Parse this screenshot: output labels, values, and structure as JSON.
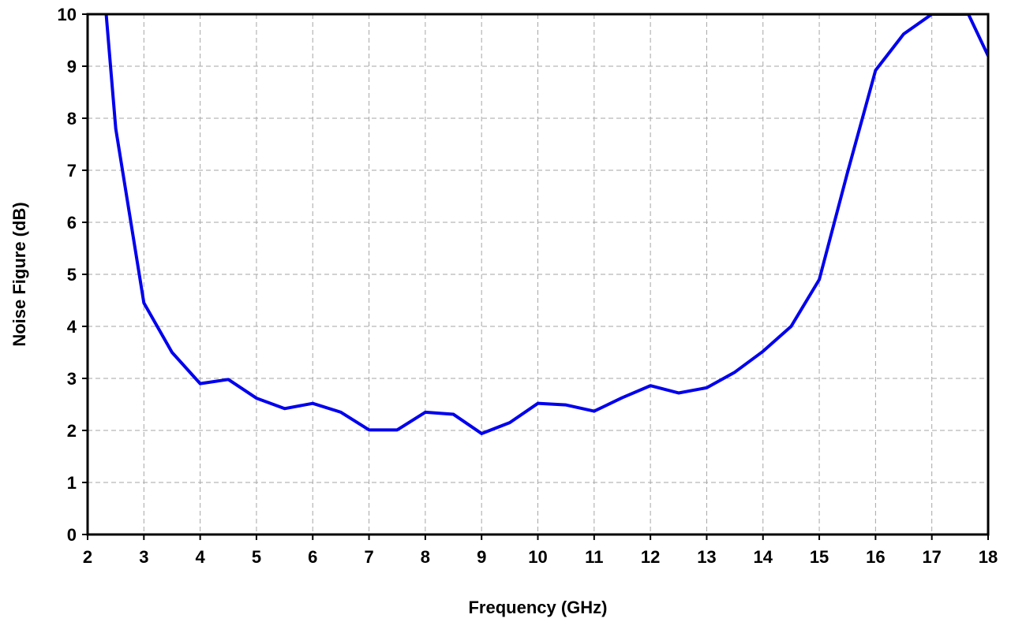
{
  "chart_data": {
    "type": "line",
    "xlabel": "Frequency (GHz)",
    "ylabel": "Noise Figure (dB)",
    "xlim": [
      2,
      18
    ],
    "ylim": [
      0,
      10
    ],
    "xticks": [
      2,
      3,
      4,
      5,
      6,
      7,
      8,
      9,
      10,
      11,
      12,
      13,
      14,
      15,
      16,
      17,
      18
    ],
    "yticks": [
      0,
      1,
      2,
      3,
      4,
      5,
      6,
      7,
      8,
      9,
      10
    ],
    "grid": true,
    "legend": "none",
    "color": "#0000ee",
    "series": [
      {
        "x": [
          2.33,
          2.5,
          3.0,
          3.5,
          4.0,
          4.5,
          5.0,
          5.5,
          6.0,
          6.5,
          7.0,
          7.5,
          8.0,
          8.5,
          9.0,
          9.5,
          10.0,
          10.5,
          11.0,
          11.5,
          12.0,
          12.5,
          13.0,
          13.5,
          14.0,
          14.5,
          15.0,
          15.5,
          16.0,
          16.5,
          17.0,
          17.3,
          17.65,
          18.0
        ],
        "y": [
          10.0,
          7.8,
          4.45,
          3.5,
          2.9,
          2.98,
          2.62,
          2.42,
          2.52,
          2.35,
          2.01,
          2.01,
          2.35,
          2.31,
          1.94,
          2.15,
          2.52,
          2.49,
          2.37,
          2.63,
          2.86,
          2.72,
          2.82,
          3.12,
          3.52,
          4.0,
          4.9,
          6.95,
          8.92,
          9.62,
          10.0,
          10.0,
          10.0,
          9.2
        ]
      }
    ]
  }
}
